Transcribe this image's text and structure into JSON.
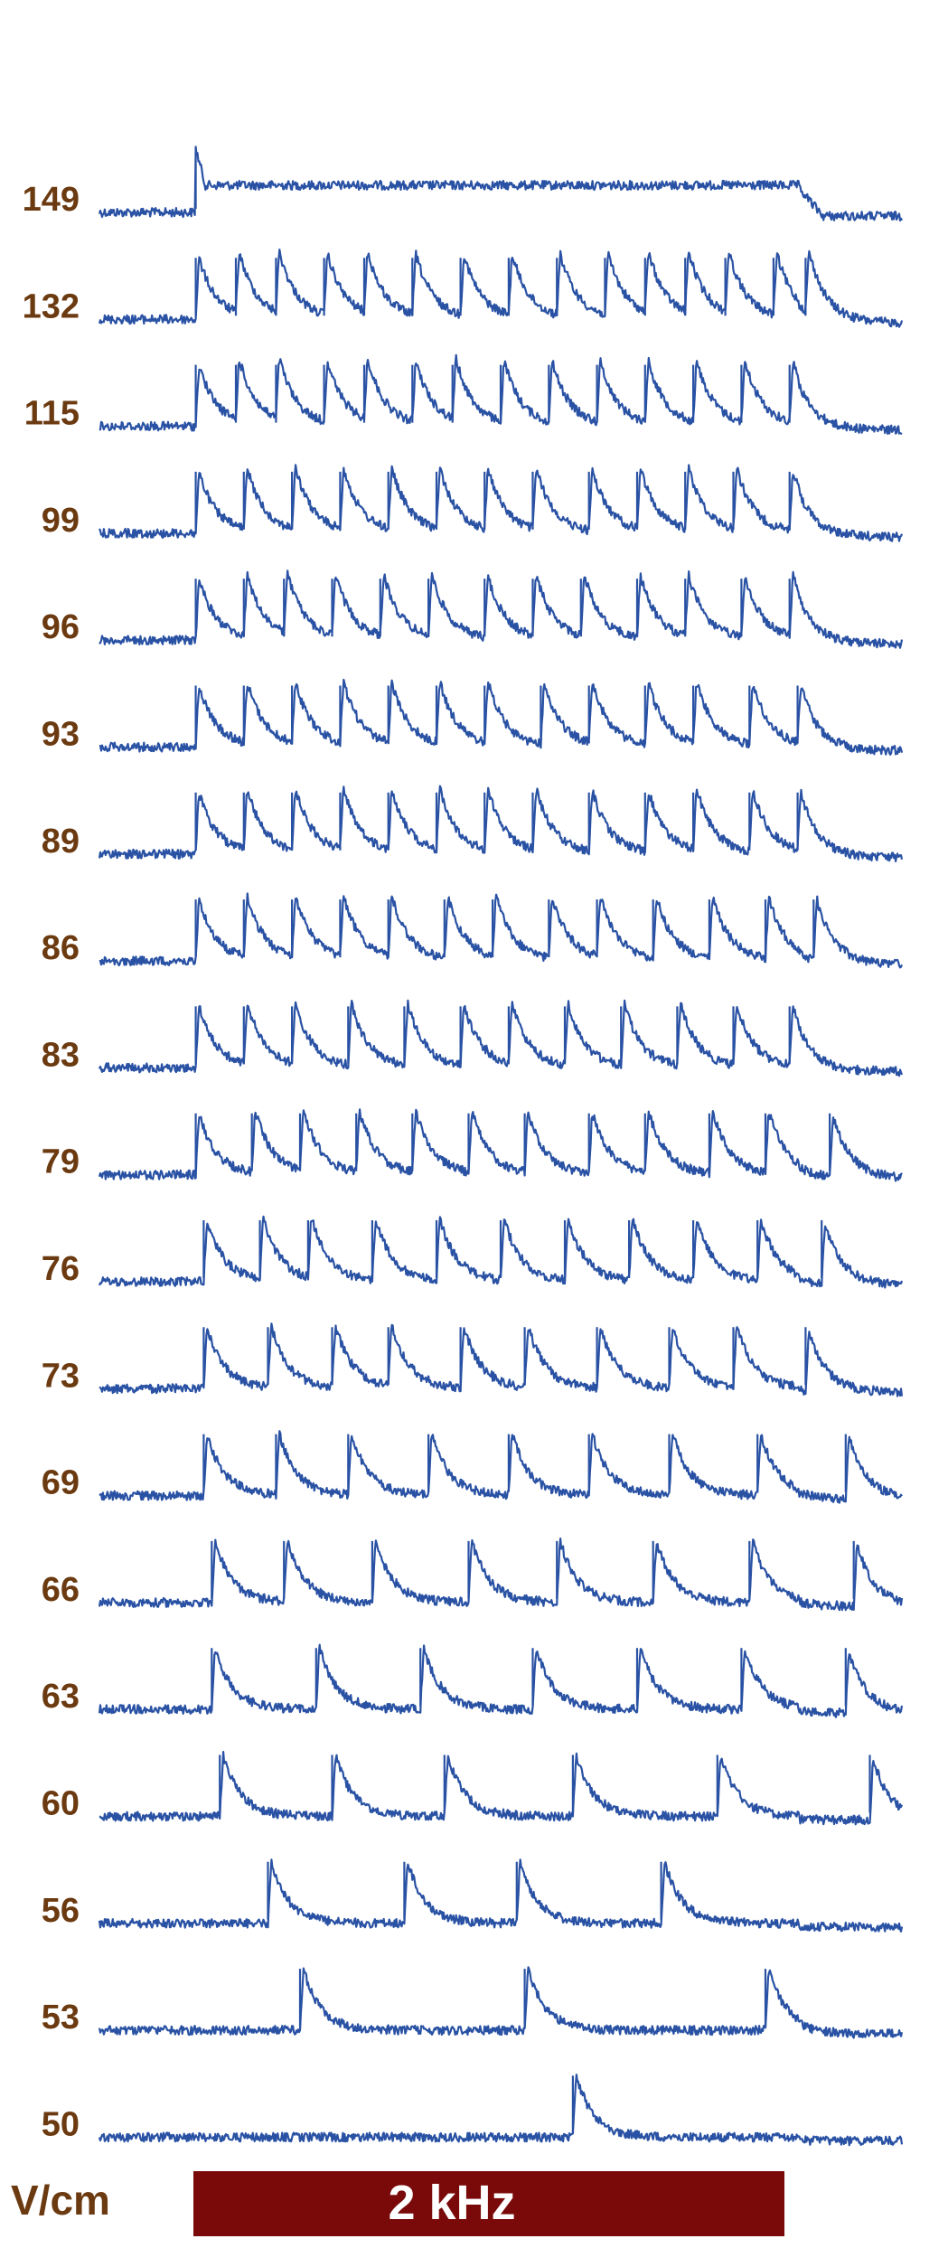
{
  "colors": {
    "trace": "#2a52a4",
    "label": "#6b3a10",
    "stimulus_bar": "#7a0a0a",
    "stimulus_text": "#ffffff"
  },
  "chart_data": {
    "type": "line",
    "title": "",
    "xlabel": "",
    "ylabel": "V/cm",
    "stimulus_label": "2 kHz",
    "series": [
      {
        "name": "149",
        "spikes": [
          0.12
        ],
        "plateau": true
      },
      {
        "name": "132",
        "spikes": [
          0.12,
          0.17,
          0.22,
          0.28,
          0.33,
          0.39,
          0.45,
          0.51,
          0.57,
          0.63,
          0.68,
          0.73,
          0.78,
          0.84,
          0.88
        ],
        "plateau": false
      },
      {
        "name": "115",
        "spikes": [
          0.12,
          0.17,
          0.22,
          0.28,
          0.33,
          0.39,
          0.44,
          0.5,
          0.56,
          0.62,
          0.68,
          0.74,
          0.8,
          0.86
        ],
        "plateau": false
      },
      {
        "name": "99",
        "spikes": [
          0.12,
          0.18,
          0.24,
          0.3,
          0.36,
          0.42,
          0.48,
          0.54,
          0.61,
          0.67,
          0.73,
          0.79,
          0.86
        ],
        "plateau": false
      },
      {
        "name": "96",
        "spikes": [
          0.12,
          0.18,
          0.23,
          0.29,
          0.35,
          0.41,
          0.48,
          0.54,
          0.6,
          0.67,
          0.73,
          0.8,
          0.86
        ],
        "plateau": false
      },
      {
        "name": "93",
        "spikes": [
          0.12,
          0.18,
          0.24,
          0.3,
          0.36,
          0.42,
          0.48,
          0.55,
          0.61,
          0.68,
          0.74,
          0.81,
          0.87
        ],
        "plateau": false
      },
      {
        "name": "89",
        "spikes": [
          0.12,
          0.18,
          0.24,
          0.3,
          0.36,
          0.42,
          0.48,
          0.54,
          0.61,
          0.68,
          0.74,
          0.81,
          0.87
        ],
        "plateau": false
      },
      {
        "name": "86",
        "spikes": [
          0.12,
          0.18,
          0.24,
          0.3,
          0.36,
          0.43,
          0.49,
          0.56,
          0.62,
          0.69,
          0.76,
          0.83,
          0.89
        ],
        "plateau": false
      },
      {
        "name": "83",
        "spikes": [
          0.12,
          0.18,
          0.24,
          0.31,
          0.38,
          0.45,
          0.51,
          0.58,
          0.65,
          0.72,
          0.79,
          0.86
        ],
        "plateau": false
      },
      {
        "name": "79",
        "spikes": [
          0.12,
          0.19,
          0.25,
          0.32,
          0.39,
          0.46,
          0.53,
          0.61,
          0.68,
          0.76,
          0.83,
          0.91
        ],
        "plateau": false
      },
      {
        "name": "76",
        "spikes": [
          0.13,
          0.2,
          0.26,
          0.34,
          0.42,
          0.5,
          0.58,
          0.66,
          0.74,
          0.82,
          0.9
        ],
        "plateau": false
      },
      {
        "name": "73",
        "spikes": [
          0.13,
          0.21,
          0.29,
          0.36,
          0.45,
          0.53,
          0.62,
          0.71,
          0.79,
          0.88
        ],
        "plateau": false
      },
      {
        "name": "69",
        "spikes": [
          0.13,
          0.22,
          0.31,
          0.41,
          0.51,
          0.61,
          0.71,
          0.82,
          0.93
        ],
        "plateau": false
      },
      {
        "name": "66",
        "spikes": [
          0.14,
          0.23,
          0.34,
          0.46,
          0.57,
          0.69,
          0.81,
          0.94
        ],
        "plateau": false
      },
      {
        "name": "63",
        "spikes": [
          0.14,
          0.27,
          0.4,
          0.54,
          0.67,
          0.8,
          0.93
        ],
        "plateau": false
      },
      {
        "name": "60",
        "spikes": [
          0.15,
          0.29,
          0.43,
          0.59,
          0.77,
          0.96
        ],
        "plateau": false
      },
      {
        "name": "56",
        "spikes": [
          0.21,
          0.38,
          0.52,
          0.7
        ],
        "plateau": false
      },
      {
        "name": "53",
        "spikes": [
          0.25,
          0.53,
          0.83
        ],
        "plateau": false
      },
      {
        "name": "50",
        "spikes": [
          0.59
        ],
        "plateau": false
      }
    ]
  }
}
